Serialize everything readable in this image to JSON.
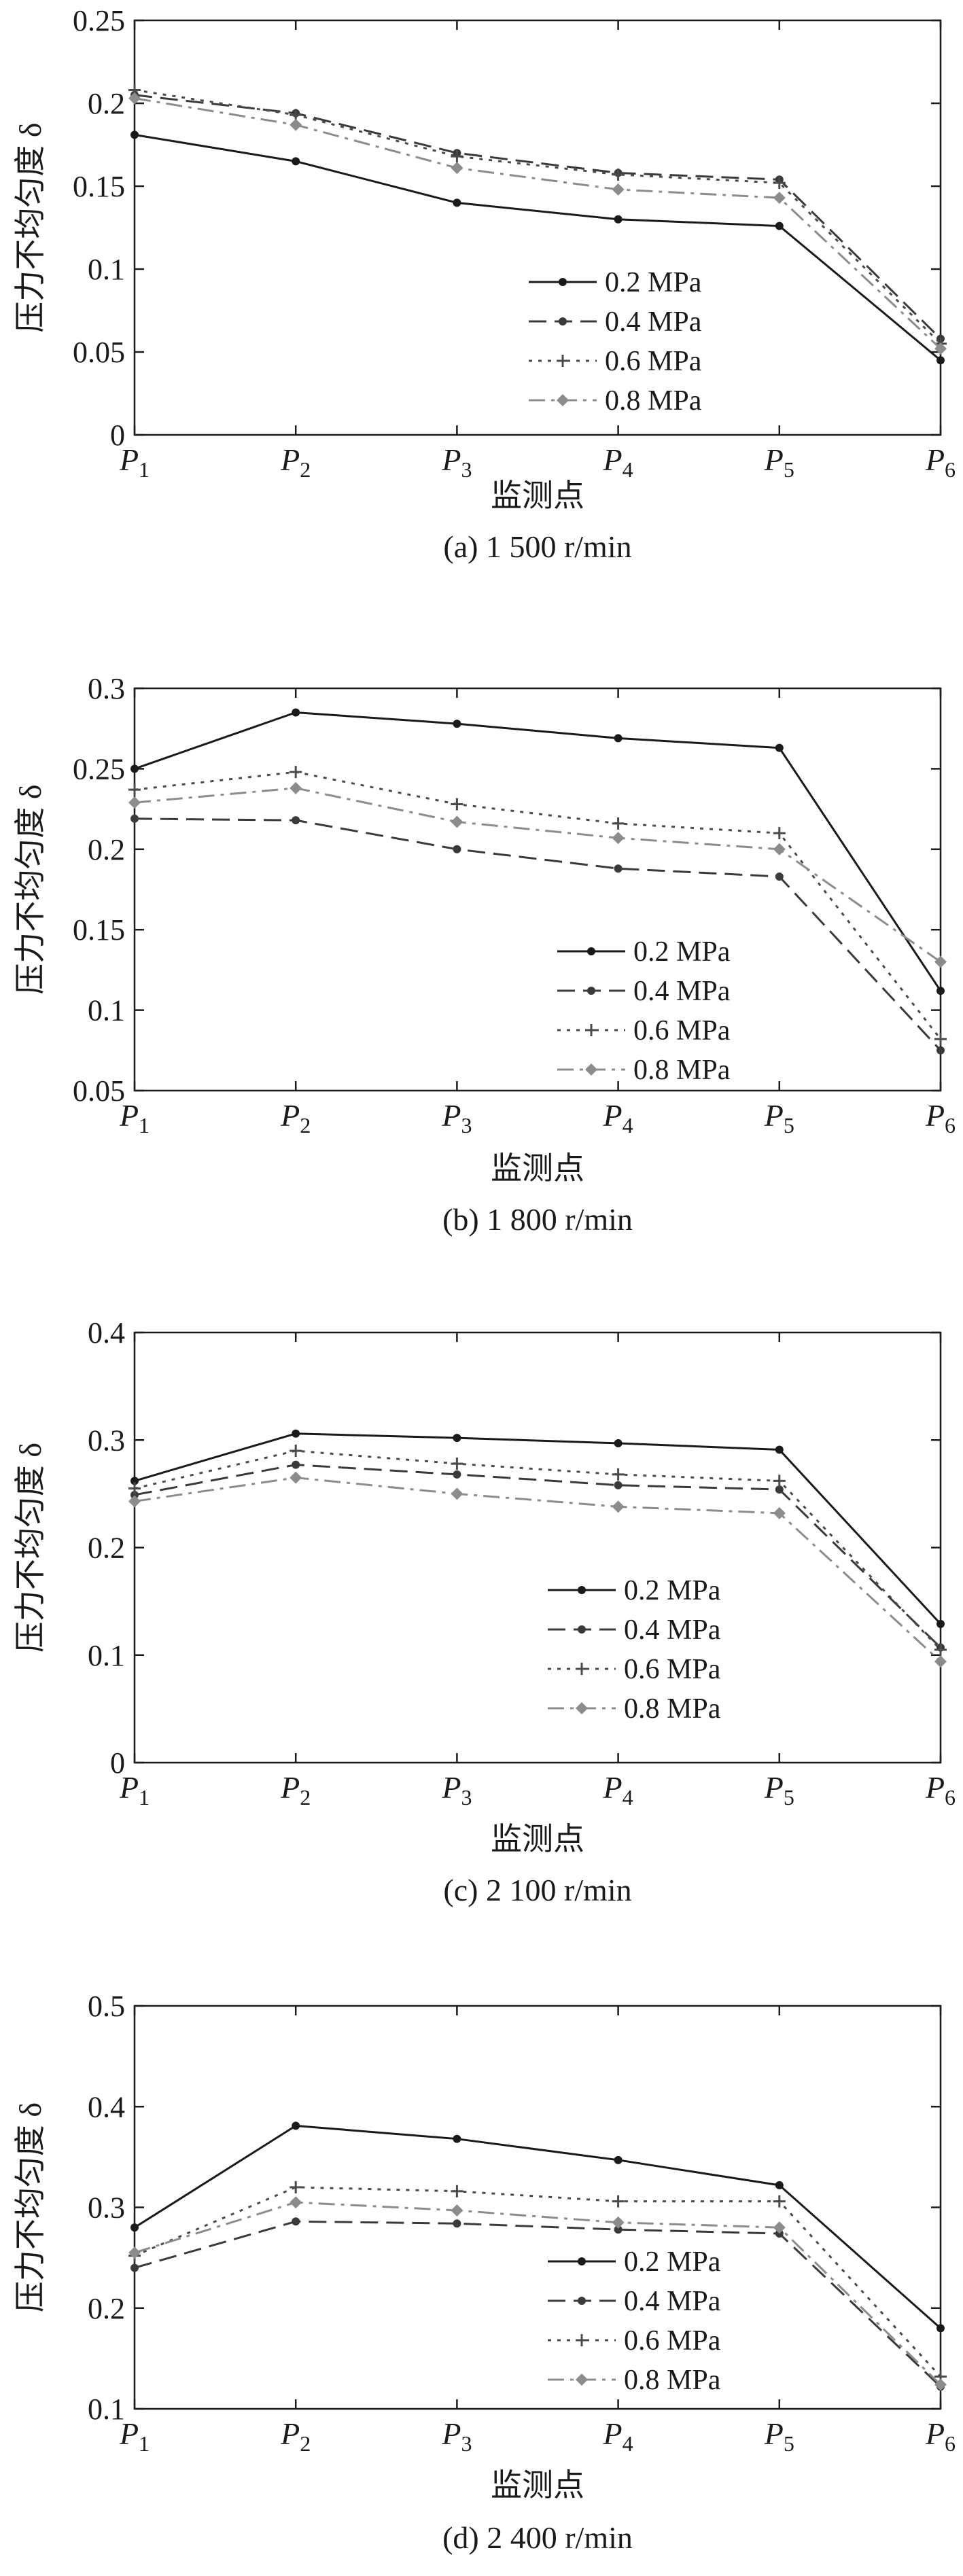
{
  "figure": {
    "charts": [
      {
        "panel_id": "a",
        "caption": "(a) 1 500 r/min",
        "x_ticks": [
          {
            "main": "P",
            "sub": "1"
          },
          {
            "main": "P",
            "sub": "2"
          },
          {
            "main": "P",
            "sub": "3"
          },
          {
            "main": "P",
            "sub": "4"
          },
          {
            "main": "P",
            "sub": "5"
          },
          {
            "main": "P",
            "sub": "6"
          }
        ],
        "y_tick_labels": [
          "0",
          "0.05",
          "0.1",
          "0.15",
          "0.2",
          "0.25"
        ],
        "legend_labels": [
          "0.2 MPa",
          "0.4 MPa",
          "0.6 MPa",
          "0.8 MPa"
        ]
      },
      {
        "panel_id": "b",
        "caption": "(b) 1 800 r/min",
        "x_ticks": [
          {
            "main": "P",
            "sub": "1"
          },
          {
            "main": "P",
            "sub": "2"
          },
          {
            "main": "P",
            "sub": "3"
          },
          {
            "main": "P",
            "sub": "4"
          },
          {
            "main": "P",
            "sub": "5"
          },
          {
            "main": "P",
            "sub": "6"
          }
        ],
        "y_tick_labels": [
          "0.05",
          "0.1",
          "0.15",
          "0.2",
          "0.25",
          "0.3"
        ],
        "legend_labels": [
          "0.2 MPa",
          "0.4 MPa",
          "0.6 MPa",
          "0.8 MPa"
        ]
      },
      {
        "panel_id": "c",
        "caption": "(c) 2 100 r/min",
        "x_ticks": [
          {
            "main": "P",
            "sub": "1"
          },
          {
            "main": "P",
            "sub": "2"
          },
          {
            "main": "P",
            "sub": "3"
          },
          {
            "main": "P",
            "sub": "4"
          },
          {
            "main": "P",
            "sub": "5"
          },
          {
            "main": "P",
            "sub": "6"
          }
        ],
        "y_tick_labels": [
          "0",
          "0.1",
          "0.2",
          "0.3",
          "0.4"
        ],
        "legend_labels": [
          "0.2 MPa",
          "0.4 MPa",
          "0.6 MPa",
          "0.8 MPa"
        ]
      },
      {
        "panel_id": "d",
        "caption": "(d) 2 400 r/min",
        "x_ticks": [
          {
            "main": "P",
            "sub": "1"
          },
          {
            "main": "P",
            "sub": "2"
          },
          {
            "main": "P",
            "sub": "3"
          },
          {
            "main": "P",
            "sub": "4"
          },
          {
            "main": "P",
            "sub": "5"
          },
          {
            "main": "P",
            "sub": "6"
          }
        ],
        "y_tick_labels": [
          "0.1",
          "0.2",
          "0.3",
          "0.4",
          "0.5"
        ],
        "legend_labels": [
          "0.2 MPa",
          "0.4 MPa",
          "0.6 MPa",
          "0.8 MPa"
        ]
      }
    ]
  },
  "chart_data": [
    {
      "type": "line",
      "caption": "(a) 1 500 r/min",
      "xlabel": "监测点",
      "ylabel": "压力不均匀度 δ",
      "categories": [
        "P1",
        "P2",
        "P3",
        "P4",
        "P5",
        "P6"
      ],
      "ylim": [
        0,
        0.25
      ],
      "yticks": [
        0,
        0.05,
        0.1,
        0.15,
        0.2,
        0.25
      ],
      "legend_position": "right, mid-lower",
      "series": [
        {
          "name": "0.2 MPa",
          "values": [
            0.181,
            0.165,
            0.14,
            0.13,
            0.126,
            0.045
          ]
        },
        {
          "name": "0.4 MPa",
          "values": [
            0.205,
            0.194,
            0.17,
            0.158,
            0.154,
            0.058
          ]
        },
        {
          "name": "0.6 MPa",
          "values": [
            0.208,
            0.193,
            0.168,
            0.157,
            0.152,
            0.055
          ]
        },
        {
          "name": "0.8 MPa",
          "values": [
            0.203,
            0.187,
            0.161,
            0.148,
            0.143,
            0.052
          ]
        }
      ]
    },
    {
      "type": "line",
      "caption": "(b) 1 800 r/min",
      "xlabel": "监测点",
      "ylabel": "压力不均匀度 δ",
      "categories": [
        "P1",
        "P2",
        "P3",
        "P4",
        "P5",
        "P6"
      ],
      "ylim": [
        0.05,
        0.3
      ],
      "yticks": [
        0.05,
        0.1,
        0.15,
        0.2,
        0.25,
        0.3
      ],
      "legend_position": "right, lower",
      "series": [
        {
          "name": "0.2 MPa",
          "values": [
            0.25,
            0.285,
            0.278,
            0.269,
            0.263,
            0.112
          ]
        },
        {
          "name": "0.4 MPa",
          "values": [
            0.219,
            0.218,
            0.2,
            0.188,
            0.183,
            0.075
          ]
        },
        {
          "name": "0.6 MPa",
          "values": [
            0.237,
            0.248,
            0.228,
            0.216,
            0.21,
            0.082
          ]
        },
        {
          "name": "0.8 MPa",
          "values": [
            0.229,
            0.238,
            0.217,
            0.207,
            0.2,
            0.13
          ]
        }
      ]
    },
    {
      "type": "line",
      "caption": "(c) 2 100 r/min",
      "xlabel": "监测点",
      "ylabel": "压力不均匀度 δ",
      "categories": [
        "P1",
        "P2",
        "P3",
        "P4",
        "P5",
        "P6"
      ],
      "ylim": [
        0,
        0.4
      ],
      "yticks": [
        0,
        0.1,
        0.2,
        0.3,
        0.4
      ],
      "legend_position": "right, lower",
      "series": [
        {
          "name": "0.2 MPa",
          "values": [
            0.262,
            0.306,
            0.302,
            0.297,
            0.291,
            0.129
          ]
        },
        {
          "name": "0.4 MPa",
          "values": [
            0.249,
            0.277,
            0.268,
            0.258,
            0.254,
            0.107
          ]
        },
        {
          "name": "0.6 MPa",
          "values": [
            0.255,
            0.29,
            0.278,
            0.268,
            0.262,
            0.105
          ]
        },
        {
          "name": "0.8 MPa",
          "values": [
            0.243,
            0.265,
            0.25,
            0.238,
            0.232,
            0.094
          ]
        }
      ]
    },
    {
      "type": "line",
      "caption": "(d) 2 400 r/min",
      "xlabel": "监测点",
      "ylabel": "压力不均匀度 δ",
      "categories": [
        "P1",
        "P2",
        "P3",
        "P4",
        "P5",
        "P6"
      ],
      "ylim": [
        0.1,
        0.5
      ],
      "yticks": [
        0.1,
        0.2,
        0.3,
        0.4,
        0.5
      ],
      "legend_position": "right, lower",
      "series": [
        {
          "name": "0.2 MPa",
          "values": [
            0.28,
            0.381,
            0.368,
            0.347,
            0.322,
            0.18
          ]
        },
        {
          "name": "0.4 MPa",
          "values": [
            0.24,
            0.286,
            0.284,
            0.278,
            0.274,
            0.122
          ]
        },
        {
          "name": "0.6 MPa",
          "values": [
            0.252,
            0.32,
            0.316,
            0.306,
            0.306,
            0.132
          ]
        },
        {
          "name": "0.8 MPa",
          "values": [
            0.255,
            0.305,
            0.297,
            0.285,
            0.28,
            0.124
          ]
        }
      ]
    }
  ],
  "series_styles": [
    {
      "color": "#1a1a1a",
      "dash": "",
      "marker": "dot"
    },
    {
      "color": "#3a3a3a",
      "dash": "26 12",
      "marker": "dot"
    },
    {
      "color": "#4a4a4a",
      "dash": "5 9",
      "marker": "plus"
    },
    {
      "color": "#8c8c8c",
      "dash": "24 9 5 9",
      "marker": "diamond"
    }
  ]
}
